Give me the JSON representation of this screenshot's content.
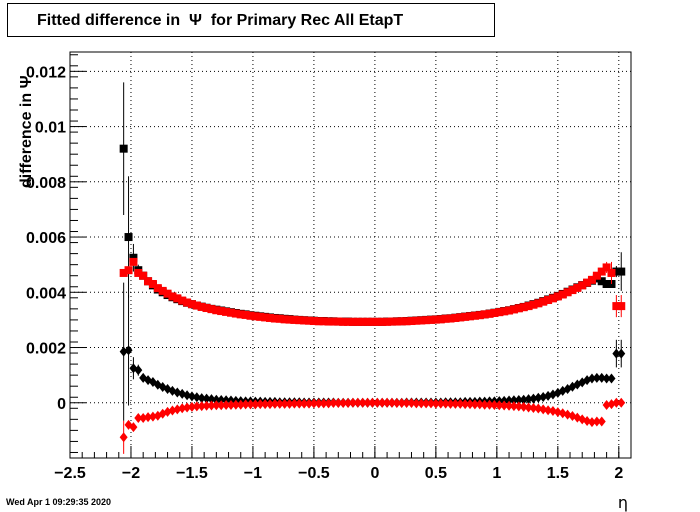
{
  "title": "Fitted difference in  Ψ  for Primary Rec All EtapT",
  "footer": "Wed Apr  1 09:29:35 2020",
  "chart_data": {
    "type": "scatter",
    "xlabel": "η",
    "ylabel": "difference in Ψ",
    "xlim": [
      -2.5,
      2.1
    ],
    "ylim": [
      -0.002,
      0.0127
    ],
    "x_ticks": [
      "-2.5",
      "-2",
      "-1.5",
      "-1",
      "-0.5",
      "0",
      "0.5",
      "1",
      "1.5",
      "2"
    ],
    "y_ticks": [
      "0",
      "0.002",
      "0.004",
      "0.006",
      "0.008",
      "0.01",
      "0.012"
    ],
    "grid": true,
    "colors": {
      "black": "#000000",
      "red": "#ff0000"
    },
    "x": [
      -2.06,
      -2.02,
      -1.98,
      -1.94,
      -1.9,
      -1.86,
      -1.82,
      -1.78,
      -1.74,
      -1.7,
      -1.66,
      -1.62,
      -1.58,
      -1.54,
      -1.5,
      -1.46,
      -1.42,
      -1.38,
      -1.34,
      -1.3,
      -1.26,
      -1.22,
      -1.18,
      -1.14,
      -1.1,
      -1.06,
      -1.02,
      -0.98,
      -0.94,
      -0.9,
      -0.86,
      -0.82,
      -0.78,
      -0.74,
      -0.7,
      -0.66,
      -0.62,
      -0.58,
      -0.54,
      -0.5,
      -0.46,
      -0.42,
      -0.38,
      -0.34,
      -0.3,
      -0.26,
      -0.22,
      -0.18,
      -0.14,
      -0.1,
      -0.06,
      -0.02,
      0.02,
      0.06,
      0.1,
      0.14,
      0.18,
      0.22,
      0.26,
      0.3,
      0.34,
      0.38,
      0.42,
      0.46,
      0.5,
      0.54,
      0.58,
      0.62,
      0.66,
      0.7,
      0.74,
      0.78,
      0.82,
      0.86,
      0.9,
      0.94,
      0.98,
      1.02,
      1.06,
      1.1,
      1.14,
      1.18,
      1.22,
      1.26,
      1.3,
      1.34,
      1.38,
      1.42,
      1.46,
      1.5,
      1.54,
      1.58,
      1.62,
      1.66,
      1.7,
      1.74,
      1.78,
      1.82,
      1.86,
      1.9,
      1.94,
      1.98,
      2.02
    ],
    "series": [
      {
        "marker": "square",
        "color": "#000000",
        "values": [
          0.0092,
          0.006,
          0.00525,
          0.0048,
          0.0046,
          0.0044,
          0.00425,
          0.0041,
          0.004,
          0.0039,
          0.00382,
          0.00375,
          0.00368,
          0.00362,
          0.00357,
          0.00352,
          0.00348,
          0.00344,
          0.0034,
          0.00337,
          0.00334,
          0.00331,
          0.00328,
          0.00325,
          0.00322,
          0.0032,
          0.00317,
          0.00315,
          0.00313,
          0.00311,
          0.00309,
          0.00307,
          0.00306,
          0.00304,
          0.00303,
          0.00301,
          0.003,
          0.00299,
          0.00298,
          0.00297,
          0.00296,
          0.00296,
          0.00295,
          0.00295,
          0.00294,
          0.00294,
          0.00294,
          0.00293,
          0.00293,
          0.00293,
          0.00293,
          0.00293,
          0.00293,
          0.00293,
          0.00294,
          0.00294,
          0.00295,
          0.00295,
          0.00296,
          0.00297,
          0.00298,
          0.00299,
          0.003,
          0.00301,
          0.00302,
          0.00303,
          0.00305,
          0.00306,
          0.00308,
          0.0031,
          0.00312,
          0.00314,
          0.00316,
          0.00318,
          0.0032,
          0.00323,
          0.00326,
          0.00329,
          0.00332,
          0.00335,
          0.00339,
          0.00343,
          0.00347,
          0.00352,
          0.00357,
          0.00362,
          0.00368,
          0.00374,
          0.0038,
          0.00387,
          0.00394,
          0.00402,
          0.0041,
          0.00418,
          0.00426,
          0.00434,
          0.00442,
          0.0045,
          0.0044,
          0.0043,
          0.0043,
          0.00475,
          0.00475
        ],
        "errors": [
          0.0024,
          0.0022,
          0.0005,
          0.0002,
          0,
          0,
          0,
          0,
          0,
          0,
          0,
          0,
          0,
          0,
          0,
          0,
          0,
          0,
          0,
          0,
          0,
          0,
          0,
          0,
          0,
          0,
          0,
          0,
          0,
          0,
          0,
          0,
          0,
          0,
          0,
          0,
          0,
          0,
          0,
          0,
          0,
          0,
          0,
          0,
          0,
          0,
          0,
          0,
          0,
          0,
          0,
          0,
          0,
          0,
          0,
          0,
          0,
          0,
          0,
          0,
          0,
          0,
          0,
          0,
          0,
          0,
          0,
          0,
          0,
          0,
          0,
          0,
          0,
          0,
          0,
          0,
          0,
          0,
          0,
          0,
          0,
          0,
          0,
          0,
          0,
          0,
          0,
          0,
          0,
          0,
          0,
          0,
          0,
          0,
          0,
          0,
          0,
          0,
          0,
          0,
          0.0001,
          0.0002,
          0.0007
        ]
      },
      {
        "marker": "square",
        "color": "#ff0000",
        "values": [
          0.0047,
          0.0048,
          0.0051,
          0.0047,
          0.0046,
          0.0044,
          0.0043,
          0.00415,
          0.00405,
          0.00395,
          0.00385,
          0.00378,
          0.0037,
          0.00363,
          0.00357,
          0.00352,
          0.00347,
          0.00343,
          0.00339,
          0.00335,
          0.00332,
          0.00329,
          0.00326,
          0.00323,
          0.0032,
          0.00318,
          0.00315,
          0.00313,
          0.00311,
          0.00309,
          0.00307,
          0.00305,
          0.00304,
          0.00302,
          0.00301,
          0.003,
          0.00299,
          0.00298,
          0.00297,
          0.00296,
          0.00295,
          0.00295,
          0.00294,
          0.00294,
          0.00294,
          0.00293,
          0.00293,
          0.00293,
          0.00293,
          0.00293,
          0.00293,
          0.00293,
          0.00293,
          0.00293,
          0.00293,
          0.00294,
          0.00294,
          0.00295,
          0.00295,
          0.00296,
          0.00297,
          0.00298,
          0.00299,
          0.003,
          0.00301,
          0.00302,
          0.00304,
          0.00305,
          0.00307,
          0.00309,
          0.00311,
          0.00313,
          0.00315,
          0.00317,
          0.0032,
          0.00322,
          0.00325,
          0.00328,
          0.00331,
          0.00334,
          0.00338,
          0.00342,
          0.00346,
          0.0035,
          0.00355,
          0.0036,
          0.00366,
          0.00372,
          0.00378,
          0.00385,
          0.00392,
          0.004,
          0.00408,
          0.00416,
          0.00425,
          0.00435,
          0.00445,
          0.0046,
          0.00475,
          0.0049,
          0.0047,
          0.0035,
          0.0035
        ],
        "errors": [
          0.0001,
          0.0001,
          0.0001,
          0,
          0,
          0,
          0,
          0,
          0,
          0,
          0,
          0,
          0,
          0,
          0,
          0,
          0,
          0,
          0,
          0,
          0,
          0,
          0,
          0,
          0,
          0,
          0,
          0,
          0,
          0,
          0,
          0,
          0,
          0,
          0,
          0,
          0,
          0,
          0,
          0,
          0,
          0,
          0,
          0,
          0,
          0,
          0,
          0,
          0,
          0,
          0,
          0,
          0,
          0,
          0,
          0,
          0,
          0,
          0,
          0,
          0,
          0,
          0,
          0,
          0,
          0,
          0,
          0,
          0,
          0,
          0,
          0,
          0,
          0,
          0,
          0,
          0,
          0,
          0,
          0,
          0,
          0,
          0,
          0,
          0,
          0,
          0,
          0,
          0,
          0,
          0,
          0,
          0,
          0,
          0,
          0,
          0,
          0,
          0,
          0.0002,
          0.0004,
          0.0004,
          0.0004
        ]
      },
      {
        "marker": "diamond",
        "color": "#000000",
        "values": [
          0.00185,
          0.0019,
          0.00125,
          0.00118,
          0.0009,
          0.00082,
          0.00075,
          0.00065,
          0.00057,
          0.0005,
          0.00043,
          0.00037,
          0.00032,
          0.00027,
          0.00023,
          0.0002,
          0.00017,
          0.00015,
          0.00013,
          0.00011,
          0.0001,
          9e-05,
          8e-05,
          7e-05,
          6e-05,
          5e-05,
          5e-05,
          4e-05,
          4e-05,
          3e-05,
          3e-05,
          3e-05,
          2e-05,
          2e-05,
          2e-05,
          2e-05,
          2e-05,
          1e-05,
          1e-05,
          1e-05,
          1e-05,
          1e-05,
          1e-05,
          1e-05,
          0,
          0,
          0,
          0,
          0,
          0,
          0,
          0,
          0,
          0,
          0,
          0,
          0,
          0,
          1e-05,
          1e-05,
          1e-05,
          1e-05,
          1e-05,
          1e-05,
          1e-05,
          1e-05,
          2e-05,
          2e-05,
          2e-05,
          2e-05,
          3e-05,
          3e-05,
          3e-05,
          4e-05,
          4e-05,
          5e-05,
          5e-05,
          6e-05,
          7e-05,
          8e-05,
          9e-05,
          0.0001,
          0.00011,
          0.00013,
          0.00015,
          0.00018,
          0.00021,
          0.00025,
          0.0003,
          0.00036,
          0.00043,
          0.0005,
          0.00058,
          0.00066,
          0.00074,
          0.00082,
          0.00088,
          0.0009,
          0.0009,
          0.00088,
          0.00088,
          0.00178,
          0.00178
        ],
        "errors": [
          0.0025,
          0.002,
          0.0004,
          0.0002,
          0.0001,
          0,
          0,
          0,
          0,
          0,
          0,
          0,
          0,
          0,
          0,
          0,
          0,
          0,
          0,
          0,
          0,
          0,
          0,
          0,
          0,
          0,
          0,
          0,
          0,
          0,
          0,
          0,
          0,
          0,
          0,
          0,
          0,
          0,
          0,
          0,
          0,
          0,
          0,
          0,
          0,
          0,
          0,
          0,
          0,
          0,
          0,
          0,
          0,
          0,
          0,
          0,
          0,
          0,
          0,
          0,
          0,
          0,
          0,
          0,
          0,
          0,
          0,
          0,
          0,
          0,
          0,
          0,
          0,
          0,
          0,
          0,
          0,
          0,
          0,
          0,
          0,
          0,
          0,
          0,
          0,
          0,
          0,
          0,
          0,
          0,
          0,
          0,
          0,
          0,
          0,
          0,
          0,
          0,
          0,
          0,
          0.0001,
          0.0005,
          0.0005
        ]
      },
      {
        "marker": "diamond",
        "color": "#ff0000",
        "values": [
          -0.00125,
          -0.0008,
          -0.00088,
          -0.00055,
          -0.00055,
          -0.00052,
          -0.0005,
          -0.00047,
          -0.0004,
          -0.00033,
          -0.00028,
          -0.00024,
          -0.0002,
          -0.00017,
          -0.00015,
          -0.00013,
          -0.00012,
          -0.00011,
          -0.0001,
          -9e-05,
          -9e-05,
          -8e-05,
          -8e-05,
          -7e-05,
          -7e-05,
          -6e-05,
          -6e-05,
          -6e-05,
          -5e-05,
          -5e-05,
          -5e-05,
          -4e-05,
          -4e-05,
          -4e-05,
          -4e-05,
          -3e-05,
          -3e-05,
          -3e-05,
          -3e-05,
          -2e-05,
          -2e-05,
          -2e-05,
          -2e-05,
          -1e-05,
          -1e-05,
          -1e-05,
          -1e-05,
          0,
          0,
          0,
          0,
          0,
          0,
          0,
          0,
          0,
          -1e-05,
          -1e-05,
          -1e-05,
          -1e-05,
          -2e-05,
          -2e-05,
          -2e-05,
          -2e-05,
          -3e-05,
          -3e-05,
          -3e-05,
          -4e-05,
          -4e-05,
          -4e-05,
          -5e-05,
          -5e-05,
          -6e-05,
          -6e-05,
          -7e-05,
          -7e-05,
          -8e-05,
          -9e-05,
          -0.0001,
          -0.00011,
          -0.00012,
          -0.00013,
          -0.00015,
          -0.00017,
          -0.00019,
          -0.00021,
          -0.00024,
          -0.00027,
          -0.0003,
          -0.00034,
          -0.00038,
          -0.00043,
          -0.00048,
          -0.00054,
          -0.0006,
          -0.00066,
          -0.0007,
          -0.00068,
          -0.00068,
          -8e-05,
          -5e-05,
          0.0,
          0.0
        ],
        "errors": [
          0.0006,
          0.0001,
          0.0001,
          0,
          0,
          0,
          0,
          0,
          0,
          0,
          0,
          0,
          0,
          0,
          0,
          0,
          0,
          0,
          0,
          0,
          0,
          0,
          0,
          0,
          0,
          0,
          0,
          0,
          0,
          0,
          0,
          0,
          0,
          0,
          0,
          0,
          0,
          0,
          0,
          0,
          0,
          0,
          0,
          0,
          0,
          0,
          0,
          0,
          0,
          0,
          0,
          0,
          0,
          0,
          0,
          0,
          0,
          0,
          0,
          0,
          0,
          0,
          0,
          0,
          0,
          0,
          0,
          0,
          0,
          0,
          0,
          0,
          0,
          0,
          0,
          0,
          0,
          0,
          0,
          0,
          0,
          0,
          0,
          0,
          0,
          0,
          0,
          0,
          0,
          0,
          0,
          0,
          0,
          0,
          0,
          0,
          0,
          0,
          0,
          0.0001,
          0.0001,
          0.0001,
          0.0001
        ]
      }
    ]
  }
}
